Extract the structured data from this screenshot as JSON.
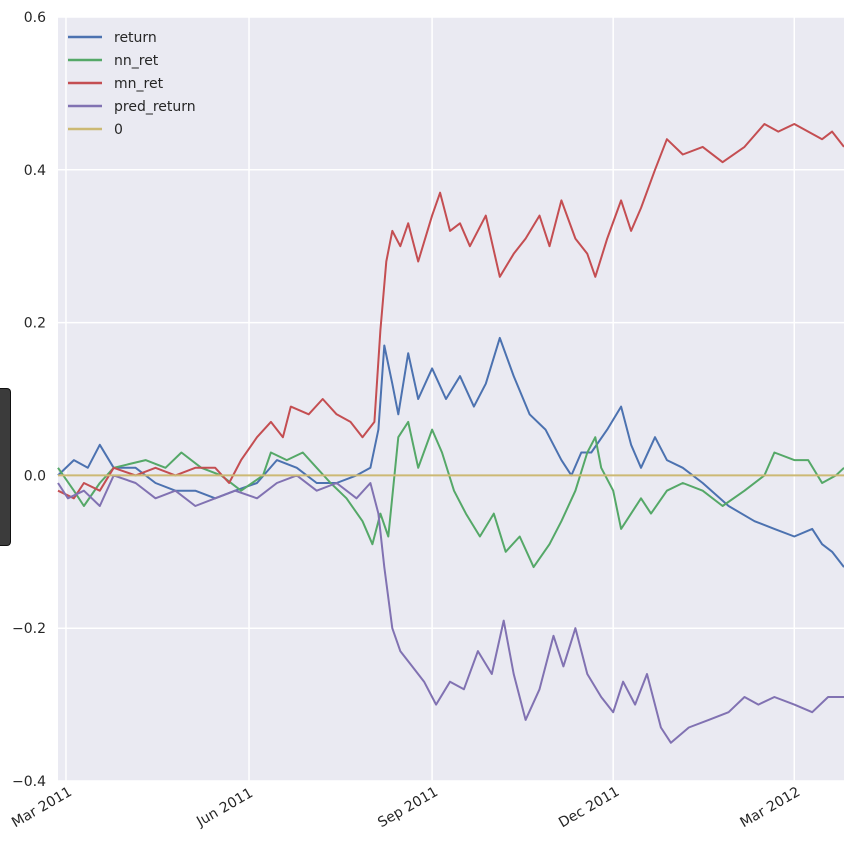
{
  "chart_data": {
    "type": "line",
    "title": "",
    "xlabel": "",
    "ylabel": "",
    "ylim": [
      -0.4,
      0.6
    ],
    "yticks": [
      -0.4,
      -0.2,
      0.0,
      0.2,
      0.4,
      0.6
    ],
    "ytick_labels": [
      "−0.4",
      "−0.2",
      "0.0",
      "0.2",
      "0.4",
      "0.6"
    ],
    "xlim": [
      "2011-02-25",
      "2012-03-26"
    ],
    "xticks": [
      "2011-03-01",
      "2011-06-01",
      "2011-09-01",
      "2011-12-01",
      "2012-03-01"
    ],
    "xtick_labels": [
      "Mar 2011",
      "Jun 2011",
      "Sep 2011",
      "Dec 2011",
      "Mar 2012"
    ],
    "grid": true,
    "legend_position": "top-left",
    "background": "#eaeaf2",
    "series": [
      {
        "name": "return",
        "color": "#4c72b0",
        "points": [
          [
            "2011-02-25",
            0.0
          ],
          [
            "2011-03-05",
            0.02
          ],
          [
            "2011-03-12",
            0.01
          ],
          [
            "2011-03-18",
            0.04
          ],
          [
            "2011-03-25",
            0.01
          ],
          [
            "2011-04-05",
            0.01
          ],
          [
            "2011-04-15",
            -0.01
          ],
          [
            "2011-04-25",
            -0.02
          ],
          [
            "2011-05-05",
            -0.02
          ],
          [
            "2011-05-15",
            -0.03
          ],
          [
            "2011-05-25",
            -0.02
          ],
          [
            "2011-06-05",
            -0.01
          ],
          [
            "2011-06-15",
            0.02
          ],
          [
            "2011-06-25",
            0.01
          ],
          [
            "2011-07-05",
            -0.01
          ],
          [
            "2011-07-15",
            -0.01
          ],
          [
            "2011-07-25",
            0.0
          ],
          [
            "2011-08-01",
            0.01
          ],
          [
            "2011-08-05",
            0.06
          ],
          [
            "2011-08-08",
            0.17
          ],
          [
            "2011-08-12",
            0.12
          ],
          [
            "2011-08-15",
            0.08
          ],
          [
            "2011-08-20",
            0.16
          ],
          [
            "2011-08-25",
            0.1
          ],
          [
            "2011-09-01",
            0.14
          ],
          [
            "2011-09-08",
            0.1
          ],
          [
            "2011-09-15",
            0.13
          ],
          [
            "2011-09-22",
            0.09
          ],
          [
            "2011-09-28",
            0.12
          ],
          [
            "2011-10-05",
            0.18
          ],
          [
            "2011-10-12",
            0.13
          ],
          [
            "2011-10-20",
            0.08
          ],
          [
            "2011-10-28",
            0.06
          ],
          [
            "2011-11-05",
            0.02
          ],
          [
            "2011-11-10",
            0.0
          ],
          [
            "2011-11-15",
            0.03
          ],
          [
            "2011-11-20",
            0.03
          ],
          [
            "2011-11-28",
            0.06
          ],
          [
            "2011-12-05",
            0.09
          ],
          [
            "2011-12-10",
            0.04
          ],
          [
            "2011-12-15",
            0.01
          ],
          [
            "2011-12-22",
            0.05
          ],
          [
            "2011-12-28",
            0.02
          ],
          [
            "2012-01-05",
            0.01
          ],
          [
            "2012-01-15",
            -0.01
          ],
          [
            "2012-01-28",
            -0.04
          ],
          [
            "2012-02-10",
            -0.06
          ],
          [
            "2012-02-20",
            -0.07
          ],
          [
            "2012-03-01",
            -0.08
          ],
          [
            "2012-03-10",
            -0.07
          ],
          [
            "2012-03-15",
            -0.09
          ],
          [
            "2012-03-20",
            -0.1
          ],
          [
            "2012-03-26",
            -0.12
          ]
        ]
      },
      {
        "name": "nn_ret",
        "color": "#55a868",
        "points": [
          [
            "2011-02-25",
            0.01
          ],
          [
            "2011-03-05",
            -0.02
          ],
          [
            "2011-03-10",
            -0.04
          ],
          [
            "2011-03-18",
            -0.01
          ],
          [
            "2011-03-25",
            0.01
          ],
          [
            "2011-04-10",
            0.02
          ],
          [
            "2011-04-20",
            0.01
          ],
          [
            "2011-04-28",
            0.03
          ],
          [
            "2011-05-08",
            0.01
          ],
          [
            "2011-05-18",
            0.0
          ],
          [
            "2011-05-28",
            -0.02
          ],
          [
            "2011-06-08",
            0.0
          ],
          [
            "2011-06-12",
            0.03
          ],
          [
            "2011-06-20",
            0.02
          ],
          [
            "2011-06-28",
            0.03
          ],
          [
            "2011-07-05",
            0.01
          ],
          [
            "2011-07-12",
            -0.01
          ],
          [
            "2011-07-20",
            -0.03
          ],
          [
            "2011-07-28",
            -0.06
          ],
          [
            "2011-08-02",
            -0.09
          ],
          [
            "2011-08-06",
            -0.05
          ],
          [
            "2011-08-10",
            -0.08
          ],
          [
            "2011-08-15",
            0.05
          ],
          [
            "2011-08-20",
            0.07
          ],
          [
            "2011-08-25",
            0.01
          ],
          [
            "2011-09-01",
            0.06
          ],
          [
            "2011-09-06",
            0.03
          ],
          [
            "2011-09-12",
            -0.02
          ],
          [
            "2011-09-18",
            -0.05
          ],
          [
            "2011-09-25",
            -0.08
          ],
          [
            "2011-10-02",
            -0.05
          ],
          [
            "2011-10-08",
            -0.1
          ],
          [
            "2011-10-15",
            -0.08
          ],
          [
            "2011-10-22",
            -0.12
          ],
          [
            "2011-10-30",
            -0.09
          ],
          [
            "2011-11-05",
            -0.06
          ],
          [
            "2011-11-12",
            -0.02
          ],
          [
            "2011-11-18",
            0.03
          ],
          [
            "2011-11-22",
            0.05
          ],
          [
            "2011-11-25",
            0.01
          ],
          [
            "2011-12-01",
            -0.02
          ],
          [
            "2011-12-05",
            -0.07
          ],
          [
            "2011-12-10",
            -0.05
          ],
          [
            "2011-12-15",
            -0.03
          ],
          [
            "2011-12-20",
            -0.05
          ],
          [
            "2011-12-28",
            -0.02
          ],
          [
            "2012-01-05",
            -0.01
          ],
          [
            "2012-01-15",
            -0.02
          ],
          [
            "2012-01-25",
            -0.04
          ],
          [
            "2012-02-05",
            -0.02
          ],
          [
            "2012-02-15",
            0.0
          ],
          [
            "2012-02-20",
            0.03
          ],
          [
            "2012-03-01",
            0.02
          ],
          [
            "2012-03-08",
            0.02
          ],
          [
            "2012-03-15",
            -0.01
          ],
          [
            "2012-03-22",
            0.0
          ],
          [
            "2012-03-26",
            0.01
          ]
        ]
      },
      {
        "name": "mn_ret",
        "color": "#c44e52",
        "points": [
          [
            "2011-02-25",
            -0.02
          ],
          [
            "2011-03-05",
            -0.03
          ],
          [
            "2011-03-10",
            -0.01
          ],
          [
            "2011-03-18",
            -0.02
          ],
          [
            "2011-03-25",
            0.01
          ],
          [
            "2011-04-05",
            0.0
          ],
          [
            "2011-04-15",
            0.01
          ],
          [
            "2011-04-25",
            0.0
          ],
          [
            "2011-05-05",
            0.01
          ],
          [
            "2011-05-15",
            0.01
          ],
          [
            "2011-05-22",
            -0.01
          ],
          [
            "2011-05-28",
            0.02
          ],
          [
            "2011-06-05",
            0.05
          ],
          [
            "2011-06-12",
            0.07
          ],
          [
            "2011-06-18",
            0.05
          ],
          [
            "2011-06-22",
            0.09
          ],
          [
            "2011-07-01",
            0.08
          ],
          [
            "2011-07-08",
            0.1
          ],
          [
            "2011-07-15",
            0.08
          ],
          [
            "2011-07-22",
            0.07
          ],
          [
            "2011-07-28",
            0.05
          ],
          [
            "2011-08-03",
            0.07
          ],
          [
            "2011-08-06",
            0.19
          ],
          [
            "2011-08-09",
            0.28
          ],
          [
            "2011-08-12",
            0.32
          ],
          [
            "2011-08-16",
            0.3
          ],
          [
            "2011-08-20",
            0.33
          ],
          [
            "2011-08-25",
            0.28
          ],
          [
            "2011-09-01",
            0.34
          ],
          [
            "2011-09-05",
            0.37
          ],
          [
            "2011-09-10",
            0.32
          ],
          [
            "2011-09-15",
            0.33
          ],
          [
            "2011-09-20",
            0.3
          ],
          [
            "2011-09-28",
            0.34
          ],
          [
            "2011-10-05",
            0.26
          ],
          [
            "2011-10-12",
            0.29
          ],
          [
            "2011-10-18",
            0.31
          ],
          [
            "2011-10-25",
            0.34
          ],
          [
            "2011-10-30",
            0.3
          ],
          [
            "2011-11-05",
            0.36
          ],
          [
            "2011-11-12",
            0.31
          ],
          [
            "2011-11-18",
            0.29
          ],
          [
            "2011-11-22",
            0.26
          ],
          [
            "2011-11-28",
            0.31
          ],
          [
            "2011-12-05",
            0.36
          ],
          [
            "2011-12-10",
            0.32
          ],
          [
            "2011-12-15",
            0.35
          ],
          [
            "2011-12-22",
            0.4
          ],
          [
            "2011-12-28",
            0.44
          ],
          [
            "2012-01-05",
            0.42
          ],
          [
            "2012-01-15",
            0.43
          ],
          [
            "2012-01-25",
            0.41
          ],
          [
            "2012-02-05",
            0.43
          ],
          [
            "2012-02-15",
            0.46
          ],
          [
            "2012-02-22",
            0.45
          ],
          [
            "2012-03-01",
            0.46
          ],
          [
            "2012-03-08",
            0.45
          ],
          [
            "2012-03-15",
            0.44
          ],
          [
            "2012-03-20",
            0.45
          ],
          [
            "2012-03-26",
            0.43
          ]
        ]
      },
      {
        "name": "pred_return",
        "color": "#8172b2",
        "points": [
          [
            "2011-02-25",
            -0.01
          ],
          [
            "2011-03-02",
            -0.03
          ],
          [
            "2011-03-10",
            -0.02
          ],
          [
            "2011-03-18",
            -0.04
          ],
          [
            "2011-03-25",
            0.0
          ],
          [
            "2011-04-05",
            -0.01
          ],
          [
            "2011-04-15",
            -0.03
          ],
          [
            "2011-04-25",
            -0.02
          ],
          [
            "2011-05-05",
            -0.04
          ],
          [
            "2011-05-15",
            -0.03
          ],
          [
            "2011-05-25",
            -0.02
          ],
          [
            "2011-06-05",
            -0.03
          ],
          [
            "2011-06-15",
            -0.01
          ],
          [
            "2011-06-25",
            0.0
          ],
          [
            "2011-07-05",
            -0.02
          ],
          [
            "2011-07-15",
            -0.01
          ],
          [
            "2011-07-25",
            -0.03
          ],
          [
            "2011-08-01",
            -0.01
          ],
          [
            "2011-08-05",
            -0.05
          ],
          [
            "2011-08-08",
            -0.12
          ],
          [
            "2011-08-12",
            -0.2
          ],
          [
            "2011-08-16",
            -0.23
          ],
          [
            "2011-08-22",
            -0.25
          ],
          [
            "2011-08-28",
            -0.27
          ],
          [
            "2011-09-03",
            -0.3
          ],
          [
            "2011-09-10",
            -0.27
          ],
          [
            "2011-09-17",
            -0.28
          ],
          [
            "2011-09-24",
            -0.23
          ],
          [
            "2011-10-01",
            -0.26
          ],
          [
            "2011-10-07",
            -0.19
          ],
          [
            "2011-10-12",
            -0.26
          ],
          [
            "2011-10-18",
            -0.32
          ],
          [
            "2011-10-25",
            -0.28
          ],
          [
            "2011-11-01",
            -0.21
          ],
          [
            "2011-11-06",
            -0.25
          ],
          [
            "2011-11-12",
            -0.2
          ],
          [
            "2011-11-18",
            -0.26
          ],
          [
            "2011-11-25",
            -0.29
          ],
          [
            "2011-12-01",
            -0.31
          ],
          [
            "2011-12-06",
            -0.27
          ],
          [
            "2011-12-12",
            -0.3
          ],
          [
            "2011-12-18",
            -0.26
          ],
          [
            "2011-12-25",
            -0.33
          ],
          [
            "2011-12-30",
            -0.35
          ],
          [
            "2012-01-08",
            -0.33
          ],
          [
            "2012-01-18",
            -0.32
          ],
          [
            "2012-01-28",
            -0.31
          ],
          [
            "2012-02-05",
            -0.29
          ],
          [
            "2012-02-12",
            -0.3
          ],
          [
            "2012-02-20",
            -0.29
          ],
          [
            "2012-03-01",
            -0.3
          ],
          [
            "2012-03-10",
            -0.31
          ],
          [
            "2012-03-18",
            -0.29
          ],
          [
            "2012-03-26",
            -0.29
          ]
        ]
      },
      {
        "name": "0",
        "color": "#ccb974",
        "points": [
          [
            "2011-02-25",
            0.0
          ],
          [
            "2012-03-26",
            0.0
          ]
        ]
      }
    ]
  }
}
